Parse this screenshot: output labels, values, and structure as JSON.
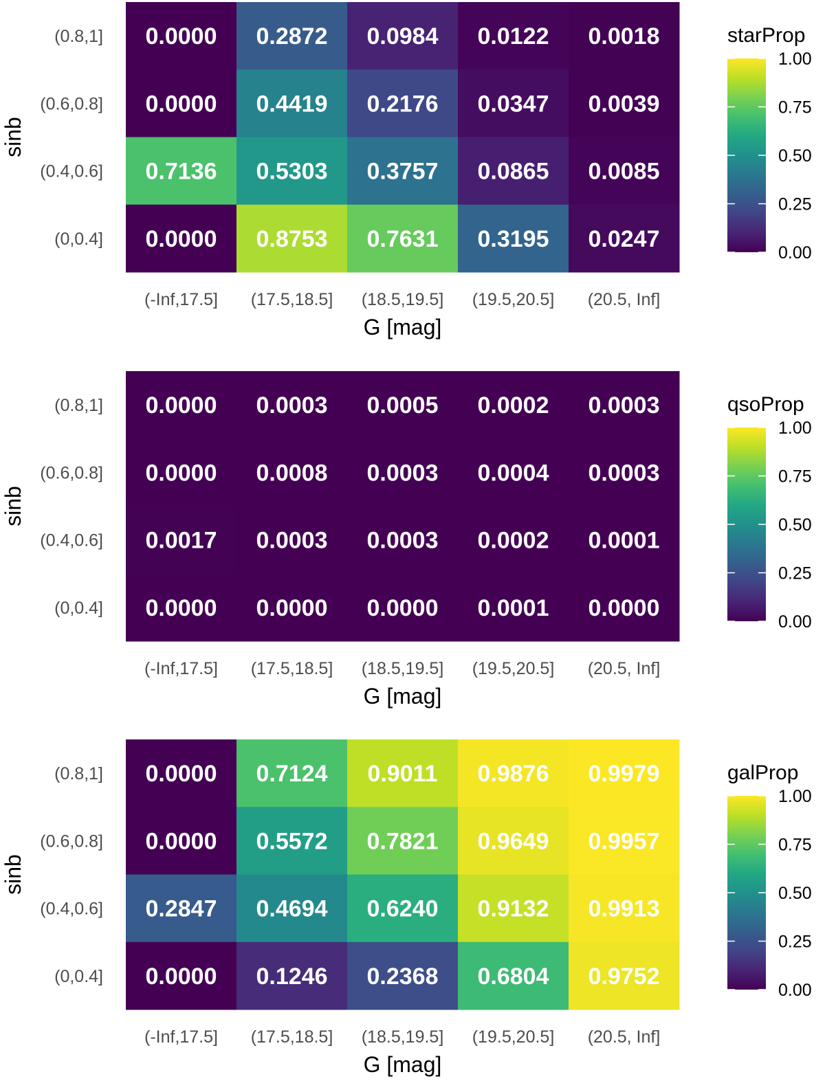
{
  "chart_data": [
    {
      "type": "heatmap",
      "fill_label": "starProp",
      "xlabel": "G [mag]",
      "ylabel": "sinb",
      "x_categories": [
        "(-Inf,17.5]",
        "(17.5,18.5]",
        "(18.5,19.5]",
        "(19.5,20.5]",
        "(20.5, Inf]"
      ],
      "y_categories": [
        "(0.8,1]",
        "(0.6,0.8]",
        "(0.4,0.6]",
        "(0,0.4]"
      ],
      "values": [
        [
          0.0,
          0.2872,
          0.0984,
          0.0122,
          0.0018
        ],
        [
          0.0,
          0.4419,
          0.2176,
          0.0347,
          0.0039
        ],
        [
          0.7136,
          0.5303,
          0.3757,
          0.0865,
          0.0085
        ],
        [
          0.0,
          0.8753,
          0.7631,
          0.3195,
          0.0247
        ]
      ],
      "labels": [
        [
          "0.0000",
          "0.2872",
          "0.0984",
          "0.0122",
          "0.0018"
        ],
        [
          "0.0000",
          "0.4419",
          "0.2176",
          "0.0347",
          "0.0039"
        ],
        [
          "0.7136",
          "0.5303",
          "0.3757",
          "0.0865",
          "0.0085"
        ],
        [
          "0.0000",
          "0.8753",
          "0.7631",
          "0.3195",
          "0.0247"
        ]
      ],
      "legend_range": [
        0,
        1
      ],
      "legend_ticks": [
        "0.00",
        "0.25",
        "0.50",
        "0.75",
        "1.00"
      ]
    },
    {
      "type": "heatmap",
      "fill_label": "qsoProp",
      "xlabel": "G [mag]",
      "ylabel": "sinb",
      "x_categories": [
        "(-Inf,17.5]",
        "(17.5,18.5]",
        "(18.5,19.5]",
        "(19.5,20.5]",
        "(20.5, Inf]"
      ],
      "y_categories": [
        "(0.8,1]",
        "(0.6,0.8]",
        "(0.4,0.6]",
        "(0,0.4]"
      ],
      "values": [
        [
          0.0,
          0.0003,
          0.0005,
          0.0002,
          0.0003
        ],
        [
          0.0,
          0.0008,
          0.0003,
          0.0004,
          0.0003
        ],
        [
          0.0017,
          0.0003,
          0.0003,
          0.0002,
          0.0001
        ],
        [
          0.0,
          0.0,
          0.0,
          0.0001,
          0.0
        ]
      ],
      "labels": [
        [
          "0.0000",
          "0.0003",
          "0.0005",
          "0.0002",
          "0.0003"
        ],
        [
          "0.0000",
          "0.0008",
          "0.0003",
          "0.0004",
          "0.0003"
        ],
        [
          "0.0017",
          "0.0003",
          "0.0003",
          "0.0002",
          "0.0001"
        ],
        [
          "0.0000",
          "0.0000",
          "0.0000",
          "0.0001",
          "0.0000"
        ]
      ],
      "legend_range": [
        0,
        1
      ],
      "legend_ticks": [
        "0.00",
        "0.25",
        "0.50",
        "0.75",
        "1.00"
      ]
    },
    {
      "type": "heatmap",
      "fill_label": "galProp",
      "xlabel": "G [mag]",
      "ylabel": "sinb",
      "x_categories": [
        "(-Inf,17.5]",
        "(17.5,18.5]",
        "(18.5,19.5]",
        "(19.5,20.5]",
        "(20.5, Inf]"
      ],
      "y_categories": [
        "(0.8,1]",
        "(0.6,0.8]",
        "(0.4,0.6]",
        "(0,0.4]"
      ],
      "values": [
        [
          0.0,
          0.7124,
          0.9011,
          0.9876,
          0.9979
        ],
        [
          0.0,
          0.5572,
          0.7821,
          0.9649,
          0.9957
        ],
        [
          0.2847,
          0.4694,
          0.624,
          0.9132,
          0.9913
        ],
        [
          0.0,
          0.1246,
          0.2368,
          0.6804,
          0.9752
        ]
      ],
      "labels": [
        [
          "0.0000",
          "0.7124",
          "0.9011",
          "0.9876",
          "0.9979"
        ],
        [
          "0.0000",
          "0.5572",
          "0.7821",
          "0.9649",
          "0.9957"
        ],
        [
          "0.2847",
          "0.4694",
          "0.6240",
          "0.9132",
          "0.9913"
        ],
        [
          "0.0000",
          "0.1246",
          "0.2368",
          "0.6804",
          "0.9752"
        ]
      ],
      "legend_range": [
        0,
        1
      ],
      "legend_ticks": [
        "0.00",
        "0.25",
        "0.50",
        "0.75",
        "1.00"
      ]
    }
  ]
}
